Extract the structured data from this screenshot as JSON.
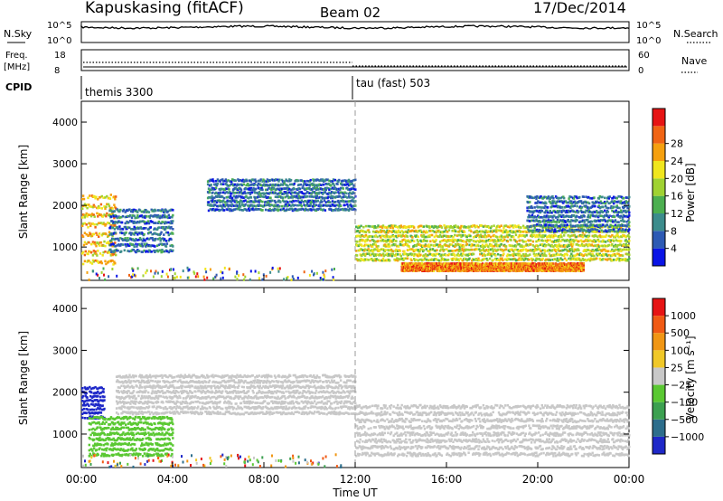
{
  "header": {
    "station": "Kapuskasing (fitACF)",
    "beam": "Beam 02",
    "date": "17/Dec/2014"
  },
  "strip_panels": {
    "nsky_label": "N.Sky",
    "nsky_ticks": [
      "10^5",
      "10^0"
    ],
    "nsearch_label": "N.Search",
    "nsearch_ticks": [
      "10^5",
      "10^0"
    ],
    "freq_label_1": "Freq.",
    "freq_label_2": "[MHz]",
    "freq_ticks": [
      "18",
      "8"
    ],
    "nave_label": "Nave",
    "nave_ticks": [
      "60",
      "0"
    ],
    "cpid_label": "CPID",
    "cpid_modes": [
      {
        "name": "themis 3300",
        "start_hour": 0
      },
      {
        "name": "tau (fast) 503",
        "start_hour": 12
      }
    ]
  },
  "x_axis": {
    "label": "Time UT",
    "ticks": [
      "00:00",
      "04:00",
      "08:00",
      "12:00",
      "16:00",
      "20:00",
      "00:00"
    ],
    "hours": [
      0,
      4,
      8,
      12,
      16,
      20,
      24
    ]
  },
  "power_panel": {
    "ylabel": "Slant Range [km]",
    "yticks": [
      "1000",
      "2000",
      "3000",
      "4000"
    ],
    "colorbar_label": "Power [dB]",
    "colorbar_ticks": [
      "4",
      "8",
      "12",
      "16",
      "20",
      "24",
      "28"
    ],
    "colors": [
      "#0a14e6",
      "#2d5ab4",
      "#3c8c8c",
      "#4caf50",
      "#a0d232",
      "#f0e61e",
      "#f5a00f",
      "#f06414",
      "#e61414"
    ]
  },
  "velocity_panel": {
    "ylabel": "Slant Range [km]",
    "yticks": [
      "1000",
      "2000",
      "3000",
      "4000"
    ],
    "colorbar_label": "Velocity [m s⁻¹]",
    "colorbar_ticks": [
      "1000",
      "500",
      "100",
      "25",
      "−25",
      "−100",
      "−500",
      "−1000"
    ],
    "colors": [
      "#1e28c8",
      "#2d6e8c",
      "#3ca050",
      "#5ac832",
      "#c8c8c8",
      "#f0c828",
      "#f09614",
      "#f05a14",
      "#e61414"
    ]
  },
  "chart_data": [
    {
      "type": "heatmap",
      "title": "Power [dB]",
      "ylabel": "Slant Range [km]",
      "xlabel": "Time UT",
      "xlim_hours": [
        0,
        24
      ],
      "ylim_km": [
        200,
        4500
      ],
      "scale": [
        0,
        30
      ],
      "regions": [
        {
          "t0": 0.0,
          "t1": 1.5,
          "r0": 600,
          "r1": 2400,
          "level": 22
        },
        {
          "t0": 1.2,
          "t1": 4.0,
          "r0": 900,
          "r1": 2000,
          "level": 8
        },
        {
          "t0": 5.5,
          "t1": 12.0,
          "r0": 1900,
          "r1": 2700,
          "level": 8
        },
        {
          "t0": 12.0,
          "t1": 24.0,
          "r0": 700,
          "r1": 1600,
          "level": 20
        },
        {
          "t0": 14.0,
          "t1": 22.0,
          "r0": 450,
          "r1": 650,
          "level": 28
        },
        {
          "t0": 19.5,
          "t1": 24.0,
          "r0": 1400,
          "r1": 2300,
          "level": 8
        }
      ]
    },
    {
      "type": "heatmap",
      "title": "Velocity [m s⁻¹]",
      "ylabel": "Slant Range [km]",
      "xlabel": "Time UT",
      "xlim_hours": [
        0,
        24
      ],
      "ylim_km": [
        200,
        4500
      ],
      "scale": [
        -1000,
        1000
      ],
      "regions": [
        {
          "t0": 0.0,
          "t1": 1.0,
          "r0": 1400,
          "r1": 2200,
          "level": -1000
        },
        {
          "t0": 0.3,
          "t1": 4.0,
          "r0": 500,
          "r1": 1500,
          "level": -300
        },
        {
          "t0": 1.5,
          "t1": 12.0,
          "r0": 1500,
          "r1": 2500,
          "level": 0
        },
        {
          "t0": 12.0,
          "t1": 24.0,
          "r0": 500,
          "r1": 1800,
          "level": 0
        }
      ]
    }
  ]
}
